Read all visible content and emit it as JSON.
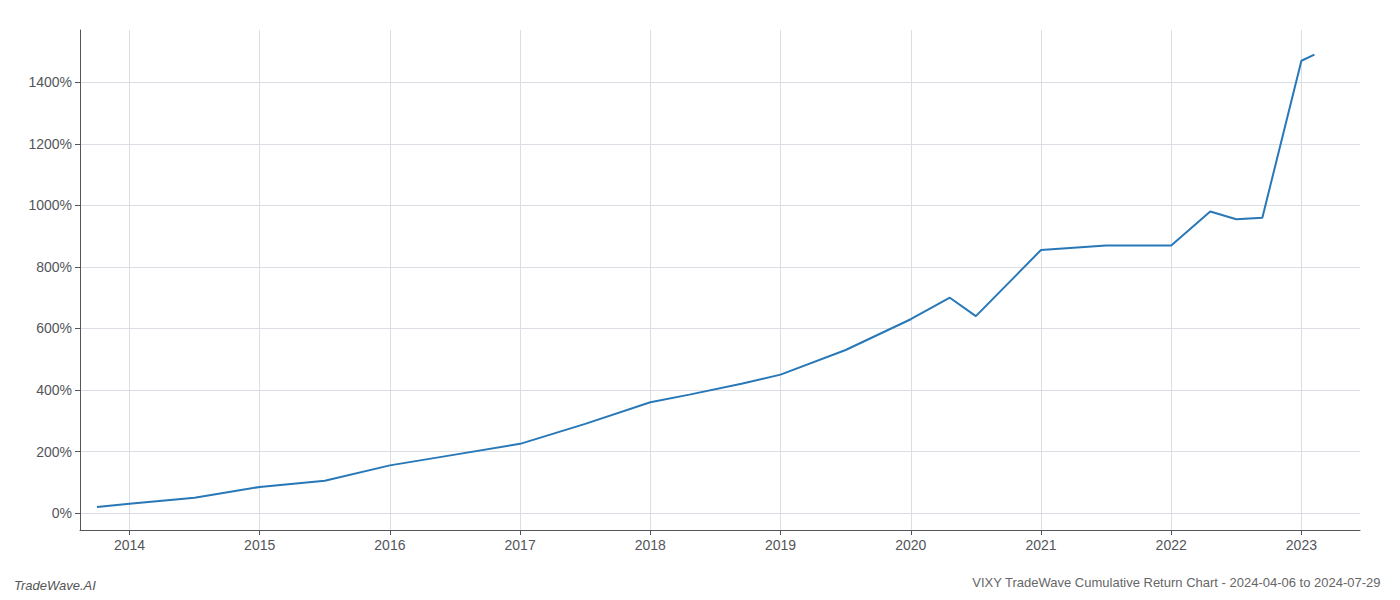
{
  "chart_data": {
    "type": "line",
    "title": "VIXY TradeWave Cumulative Return Chart - 2024-04-06 to 2024-07-29",
    "annotations": [
      "TradeWave.AI"
    ],
    "x": [
      2013.75,
      2014.0,
      2014.5,
      2015.0,
      2015.5,
      2016.0,
      2016.5,
      2017.0,
      2017.5,
      2018.0,
      2018.3,
      2018.7,
      2019.0,
      2019.5,
      2020.0,
      2020.3,
      2020.5,
      2021.0,
      2021.5,
      2022.0,
      2022.3,
      2022.5,
      2022.7,
      2023.0,
      2023.1
    ],
    "values": [
      20,
      30,
      50,
      85,
      105,
      155,
      190,
      225,
      290,
      360,
      385,
      420,
      450,
      530,
      630,
      700,
      640,
      855,
      870,
      870,
      980,
      955,
      960,
      1470,
      1490
    ],
    "color": "#2878b8",
    "xlim": [
      2013.62,
      2023.45
    ],
    "xticks": [
      2014,
      2015,
      2016,
      2017,
      2018,
      2019,
      2020,
      2021,
      2022,
      2023
    ],
    "ylim": [
      -55,
      1570
    ],
    "yticks": [
      {
        "value": 0,
        "label": "0%"
      },
      {
        "value": 200,
        "label": "200%"
      },
      {
        "value": 400,
        "label": "400%"
      },
      {
        "value": 600,
        "label": "600%"
      },
      {
        "value": 800,
        "label": "800%"
      },
      {
        "value": 1000,
        "label": "1000%"
      },
      {
        "value": 1200,
        "label": "1200%"
      },
      {
        "value": 1400,
        "label": "1400%"
      }
    ],
    "grid": true
  }
}
